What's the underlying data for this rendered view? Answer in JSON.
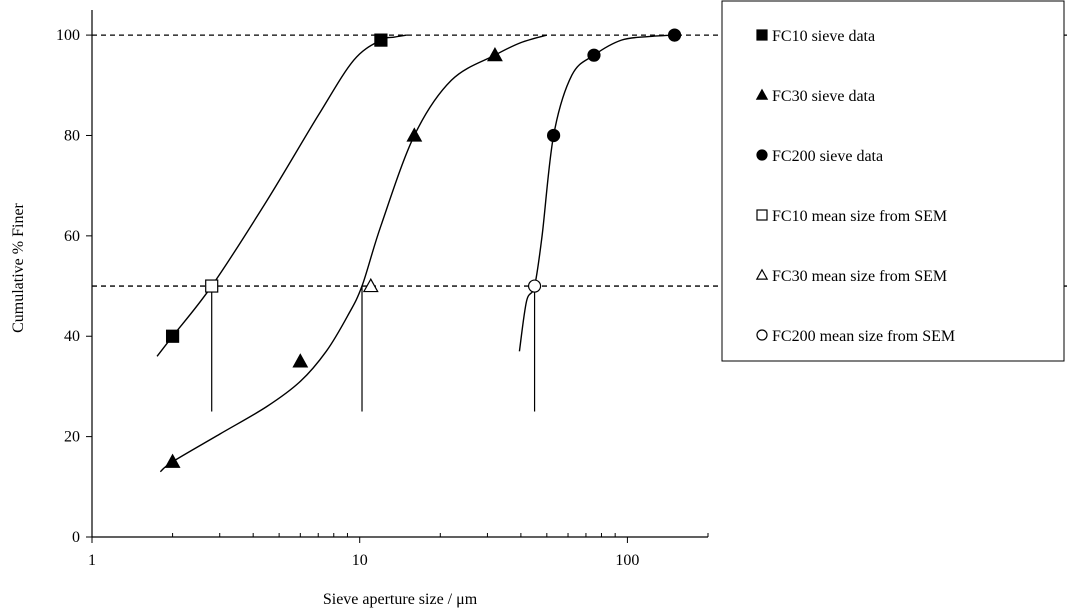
{
  "chart_data": {
    "type": "scatter",
    "title": "",
    "xlabel": "Sieve aperture size / μm",
    "ylabel": "Cumulative % Finer",
    "xscale": "log",
    "xlim": [
      1,
      200
    ],
    "ylim": [
      0,
      105
    ],
    "x_ticks": [
      "1",
      "10",
      "100"
    ],
    "x_tick_values": [
      1,
      10,
      100
    ],
    "y_ticks": [
      "0",
      "20",
      "40",
      "60",
      "80",
      "100"
    ],
    "y_tick_values": [
      0,
      20,
      40,
      60,
      80,
      100
    ],
    "grid": false,
    "legend_position": "right",
    "reference_lines": [
      {
        "y": 100,
        "style": "dashed"
      },
      {
        "y": 50,
        "style": "dashed"
      }
    ],
    "drop_lines": [
      {
        "x": 2.8,
        "y_from": 25,
        "y_to": 50
      },
      {
        "x": 10.2,
        "y_from": 25,
        "y_to": 50
      },
      {
        "x": 45,
        "y_from": 25,
        "y_to": 50
      }
    ],
    "series": [
      {
        "name": "FC10 sieve data",
        "marker": "square-filled",
        "color": "#000000",
        "x": [
          2,
          12
        ],
        "y": [
          40,
          99
        ]
      },
      {
        "name": "FC30 sieve data",
        "marker": "triangle-filled",
        "color": "#000000",
        "x": [
          2,
          6,
          16,
          32
        ],
        "y": [
          15,
          35,
          80,
          96
        ]
      },
      {
        "name": "FC200 sieve data",
        "marker": "circle-filled",
        "color": "#000000",
        "x": [
          53,
          75,
          150
        ],
        "y": [
          80,
          96,
          100
        ]
      },
      {
        "name": "FC10 mean size from SEM",
        "marker": "square-open",
        "color": "#000000",
        "x": [
          2.8
        ],
        "y": [
          50
        ]
      },
      {
        "name": "FC30 mean size from SEM",
        "marker": "triangle-open",
        "color": "#000000",
        "x": [
          11
        ],
        "y": [
          50
        ]
      },
      {
        "name": "FC200 mean size from SEM",
        "marker": "circle-open",
        "color": "#000000",
        "x": [
          45
        ],
        "y": [
          50
        ]
      }
    ],
    "fit_curves": [
      {
        "name": "FC10 fit",
        "x": [
          1.75,
          2.0,
          2.8,
          4.5,
          7.0,
          9.5,
          12.0,
          13.5,
          15.0
        ],
        "y": [
          36,
          40,
          50,
          67,
          84,
          95,
          99,
          99.6,
          100
        ]
      },
      {
        "name": "FC30 fit",
        "x": [
          1.8,
          2.0,
          3.0,
          4.5,
          6.0,
          7.5,
          9.0,
          10.2,
          12.0,
          16.0,
          22.0,
          32.0,
          40.0,
          50.0
        ],
        "y": [
          13,
          15,
          20.5,
          26,
          31,
          37,
          44,
          50,
          62,
          80,
          91,
          96,
          98.5,
          100
        ]
      },
      {
        "name": "FC200 fit",
        "x": [
          39.5,
          42.0,
          45.0,
          48.0,
          53.0,
          62.0,
          75.0,
          95.0,
          120.0,
          150.0
        ],
        "y": [
          37,
          47,
          50,
          60,
          80,
          92,
          96,
          99,
          99.7,
          100
        ]
      }
    ]
  }
}
